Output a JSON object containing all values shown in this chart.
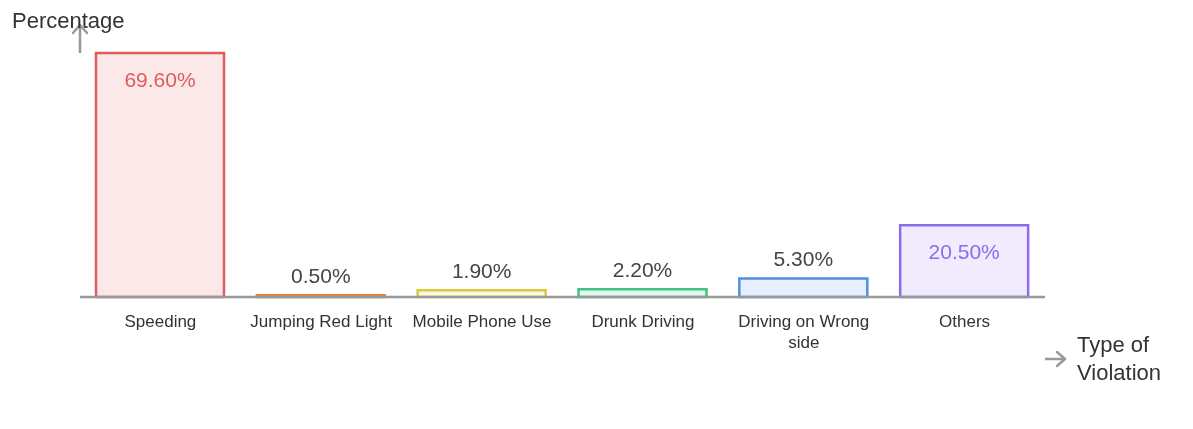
{
  "chart_data": {
    "type": "bar",
    "xlabel": "Type of Violation",
    "ylabel": "Percentage",
    "categories": [
      "Speeding",
      "Jumping Red Light",
      "Mobile Phone Use",
      "Drunk Driving",
      "Driving on Wrong side",
      "Others"
    ],
    "values": [
      69.6,
      0.5,
      1.9,
      2.2,
      5.3,
      20.5
    ],
    "colors": [
      "#e15b5b",
      "#e0823d",
      "#d8cb3b",
      "#3fc47f",
      "#4d8fe8",
      "#8b6cf0"
    ],
    "value_labels": [
      "69.60%",
      "0.50%",
      "1.90%",
      "2.20%",
      "5.30%",
      "20.50%"
    ],
    "grid": false,
    "legend": false
  }
}
